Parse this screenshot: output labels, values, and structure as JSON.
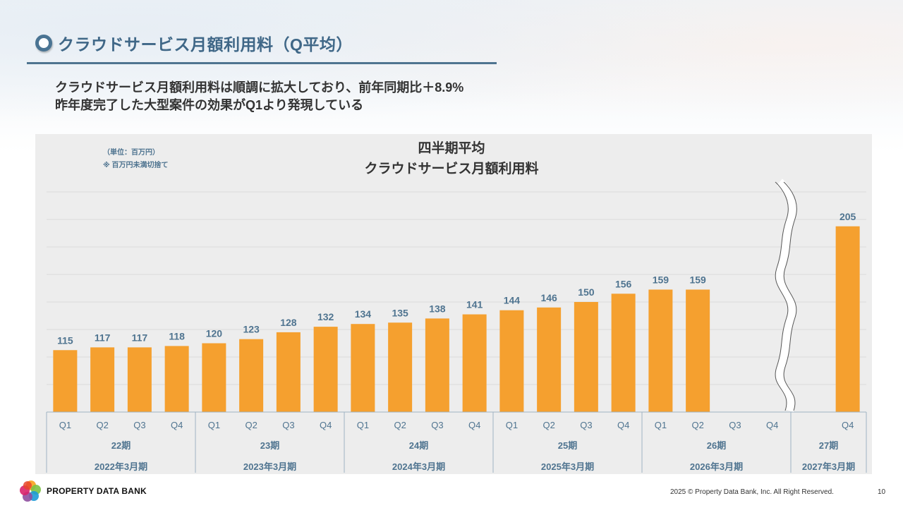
{
  "header": {
    "title": "クラウドサービス月額利用料（Q平均）",
    "summary_line1": "クラウドサービス月額利用料は順調に拡大しており、前年同期比＋8.9%",
    "summary_line2": "昨年度完了した大型案件の効果がQ1より発現している"
  },
  "chart_notes": {
    "unit": "（単位：百万円）",
    "rounding": "※ 百万円未満切捨て"
  },
  "footer": {
    "logo_text": "PROPERTY DATA BANK",
    "copyright": "2025 © Property Data Bank, Inc. All  Right Reserved.",
    "page_number": "10"
  },
  "colors": {
    "bar": "#f5a02f",
    "label": "#4f7490",
    "grid": "#dcdcdc",
    "axis": "#9fb2c2"
  },
  "chart_data": {
    "type": "bar",
    "title": "四半期平均",
    "subtitle": "クラウドサービス月額利用料",
    "xlabel": "",
    "ylabel": "",
    "ylim": [
      70,
      230
    ],
    "grid_step": 20,
    "grid": true,
    "legend": "none",
    "axis_break_after_group": "26期",
    "groups": [
      {
        "period": "22期",
        "fiscal_year": "2022年3月期",
        "quarters": [
          "Q1",
          "Q2",
          "Q3",
          "Q4"
        ],
        "values": [
          115,
          117,
          117,
          118
        ]
      },
      {
        "period": "23期",
        "fiscal_year": "2023年3月期",
        "quarters": [
          "Q1",
          "Q2",
          "Q3",
          "Q4"
        ],
        "values": [
          120,
          123,
          128,
          132
        ]
      },
      {
        "period": "24期",
        "fiscal_year": "2024年3月期",
        "quarters": [
          "Q1",
          "Q2",
          "Q3",
          "Q4"
        ],
        "values": [
          134,
          135,
          138,
          141
        ]
      },
      {
        "period": "25期",
        "fiscal_year": "2025年3月期",
        "quarters": [
          "Q1",
          "Q2",
          "Q3",
          "Q4"
        ],
        "values": [
          144,
          146,
          150,
          156
        ]
      },
      {
        "period": "26期",
        "fiscal_year": "2026年3月期",
        "quarters": [
          "Q1",
          "Q2",
          "Q3",
          "Q4"
        ],
        "values": [
          159,
          159,
          null,
          null
        ]
      },
      {
        "period": "27期",
        "fiscal_year": "2027年3月期",
        "quarters": [
          "Q4"
        ],
        "values": [
          205
        ]
      }
    ]
  }
}
